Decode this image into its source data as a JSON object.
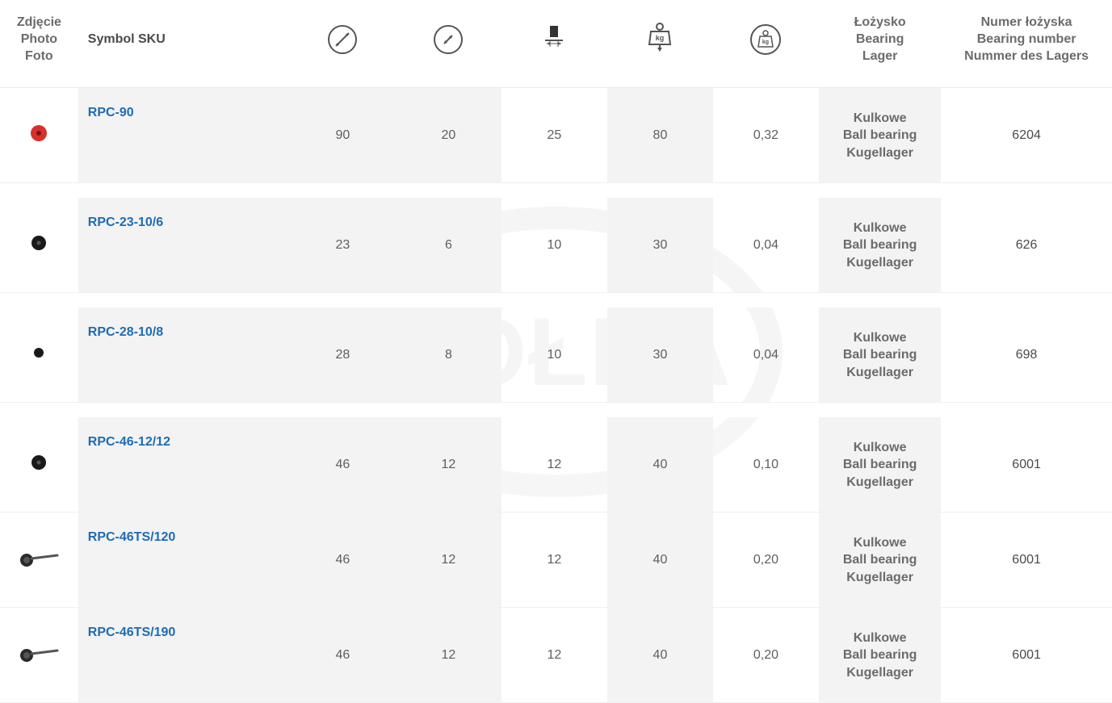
{
  "watermark_text": "KÓŁKA",
  "colors": {
    "link": "#1e6bb8",
    "header_text": "#6b6b6b",
    "body_text": "#5e5e5e",
    "shade_bg": "#f3f3f3",
    "border": "#e8e8e8"
  },
  "header": {
    "photo": [
      "Zdjęcie",
      "Photo",
      "Foto"
    ],
    "sku": "Symbol SKU",
    "icons": [
      "outer-diameter-icon",
      "bore-diameter-icon",
      "width-icon",
      "load-capacity-icon",
      "weight-icon"
    ],
    "bearing": [
      "Łożysko",
      "Bearing",
      "Lager"
    ],
    "bearing_number": [
      "Numer łożyska",
      "Bearing number",
      "Nummer des Lagers"
    ]
  },
  "bearing_type_lines": [
    "Kulkowe",
    "Ball bearing",
    "Kugellager"
  ],
  "rows": [
    {
      "sku": "RPC-90",
      "thumb": "red-wheel",
      "d1": "90",
      "d2": "20",
      "w": "25",
      "load": "80",
      "wt": "0,32",
      "bnum": "6204",
      "gap_after": true
    },
    {
      "sku": "RPC-23-10/6",
      "thumb": "black-wheel",
      "d1": "23",
      "d2": "6",
      "w": "10",
      "load": "30",
      "wt": "0,04",
      "bnum": "626",
      "gap_after": true
    },
    {
      "sku": "RPC-28-10/8",
      "thumb": "black-dot",
      "d1": "28",
      "d2": "8",
      "w": "10",
      "load": "30",
      "wt": "0,04",
      "bnum": "698",
      "gap_after": true
    },
    {
      "sku": "RPC-46-12/12",
      "thumb": "black-wheel",
      "d1": "46",
      "d2": "12",
      "w": "12",
      "load": "40",
      "wt": "0,10",
      "bnum": "6001",
      "gap_after": false
    },
    {
      "sku": "RPC-46TS/120",
      "thumb": "stem-wheel",
      "d1": "46",
      "d2": "12",
      "w": "12",
      "load": "40",
      "wt": "0,20",
      "bnum": "6001",
      "gap_after": false
    },
    {
      "sku": "RPC-46TS/190",
      "thumb": "stem-wheel",
      "d1": "46",
      "d2": "12",
      "w": "12",
      "load": "40",
      "wt": "0,20",
      "bnum": "6001",
      "gap_after": false
    }
  ]
}
